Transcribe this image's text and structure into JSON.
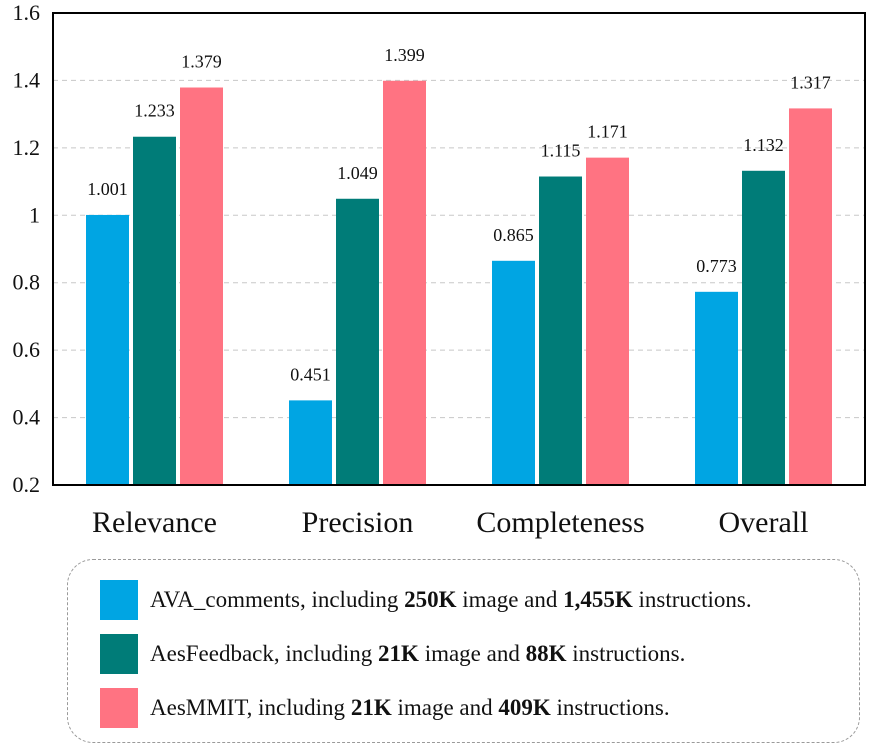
{
  "chart_data": {
    "type": "bar",
    "categories": [
      "Relevance",
      "Precision",
      "Completeness",
      "Overall"
    ],
    "series": [
      {
        "name": "AVA_comments",
        "color": "#00a5e3",
        "values": [
          1.001,
          0.451,
          0.865,
          0.773
        ],
        "labels": [
          "1.001",
          "0.451",
          "0.865",
          "0.773"
        ]
      },
      {
        "name": "AesFeedback",
        "color": "#007c78",
        "values": [
          1.233,
          1.049,
          1.115,
          1.132
        ],
        "labels": [
          "1.233",
          "1.049",
          "1.115",
          "1.132"
        ]
      },
      {
        "name": "AesMMIT",
        "color": "#ff7382",
        "values": [
          1.379,
          1.399,
          1.171,
          1.317
        ],
        "labels": [
          "1.379",
          "1.399",
          "1.171",
          "1.317"
        ]
      }
    ],
    "ylim": [
      0.2,
      1.6
    ],
    "yticks": [
      0.2,
      0.4,
      0.6,
      0.8,
      1.0,
      1.2,
      1.4,
      1.6
    ],
    "ytick_labels": [
      "0.2",
      "0.4",
      "0.6",
      "0.8",
      "1",
      "1.2",
      "1.4",
      "1.6"
    ],
    "grid": true,
    "legend_position": "bottom",
    "legend": [
      {
        "name": "AVA_comments",
        "pre": ", including ",
        "images": "250K",
        "mid": " image and ",
        "instructions": "1,455K",
        "post": " instructions."
      },
      {
        "name": "AesFeedback",
        "pre": ", including ",
        "images": "21K",
        "mid": " image and ",
        "instructions": "88K",
        "post": " instructions."
      },
      {
        "name": "AesMMIT",
        "pre": ", including ",
        "images": "21K",
        "mid": " image and ",
        "instructions": "409K",
        "post": " instructions."
      }
    ]
  }
}
